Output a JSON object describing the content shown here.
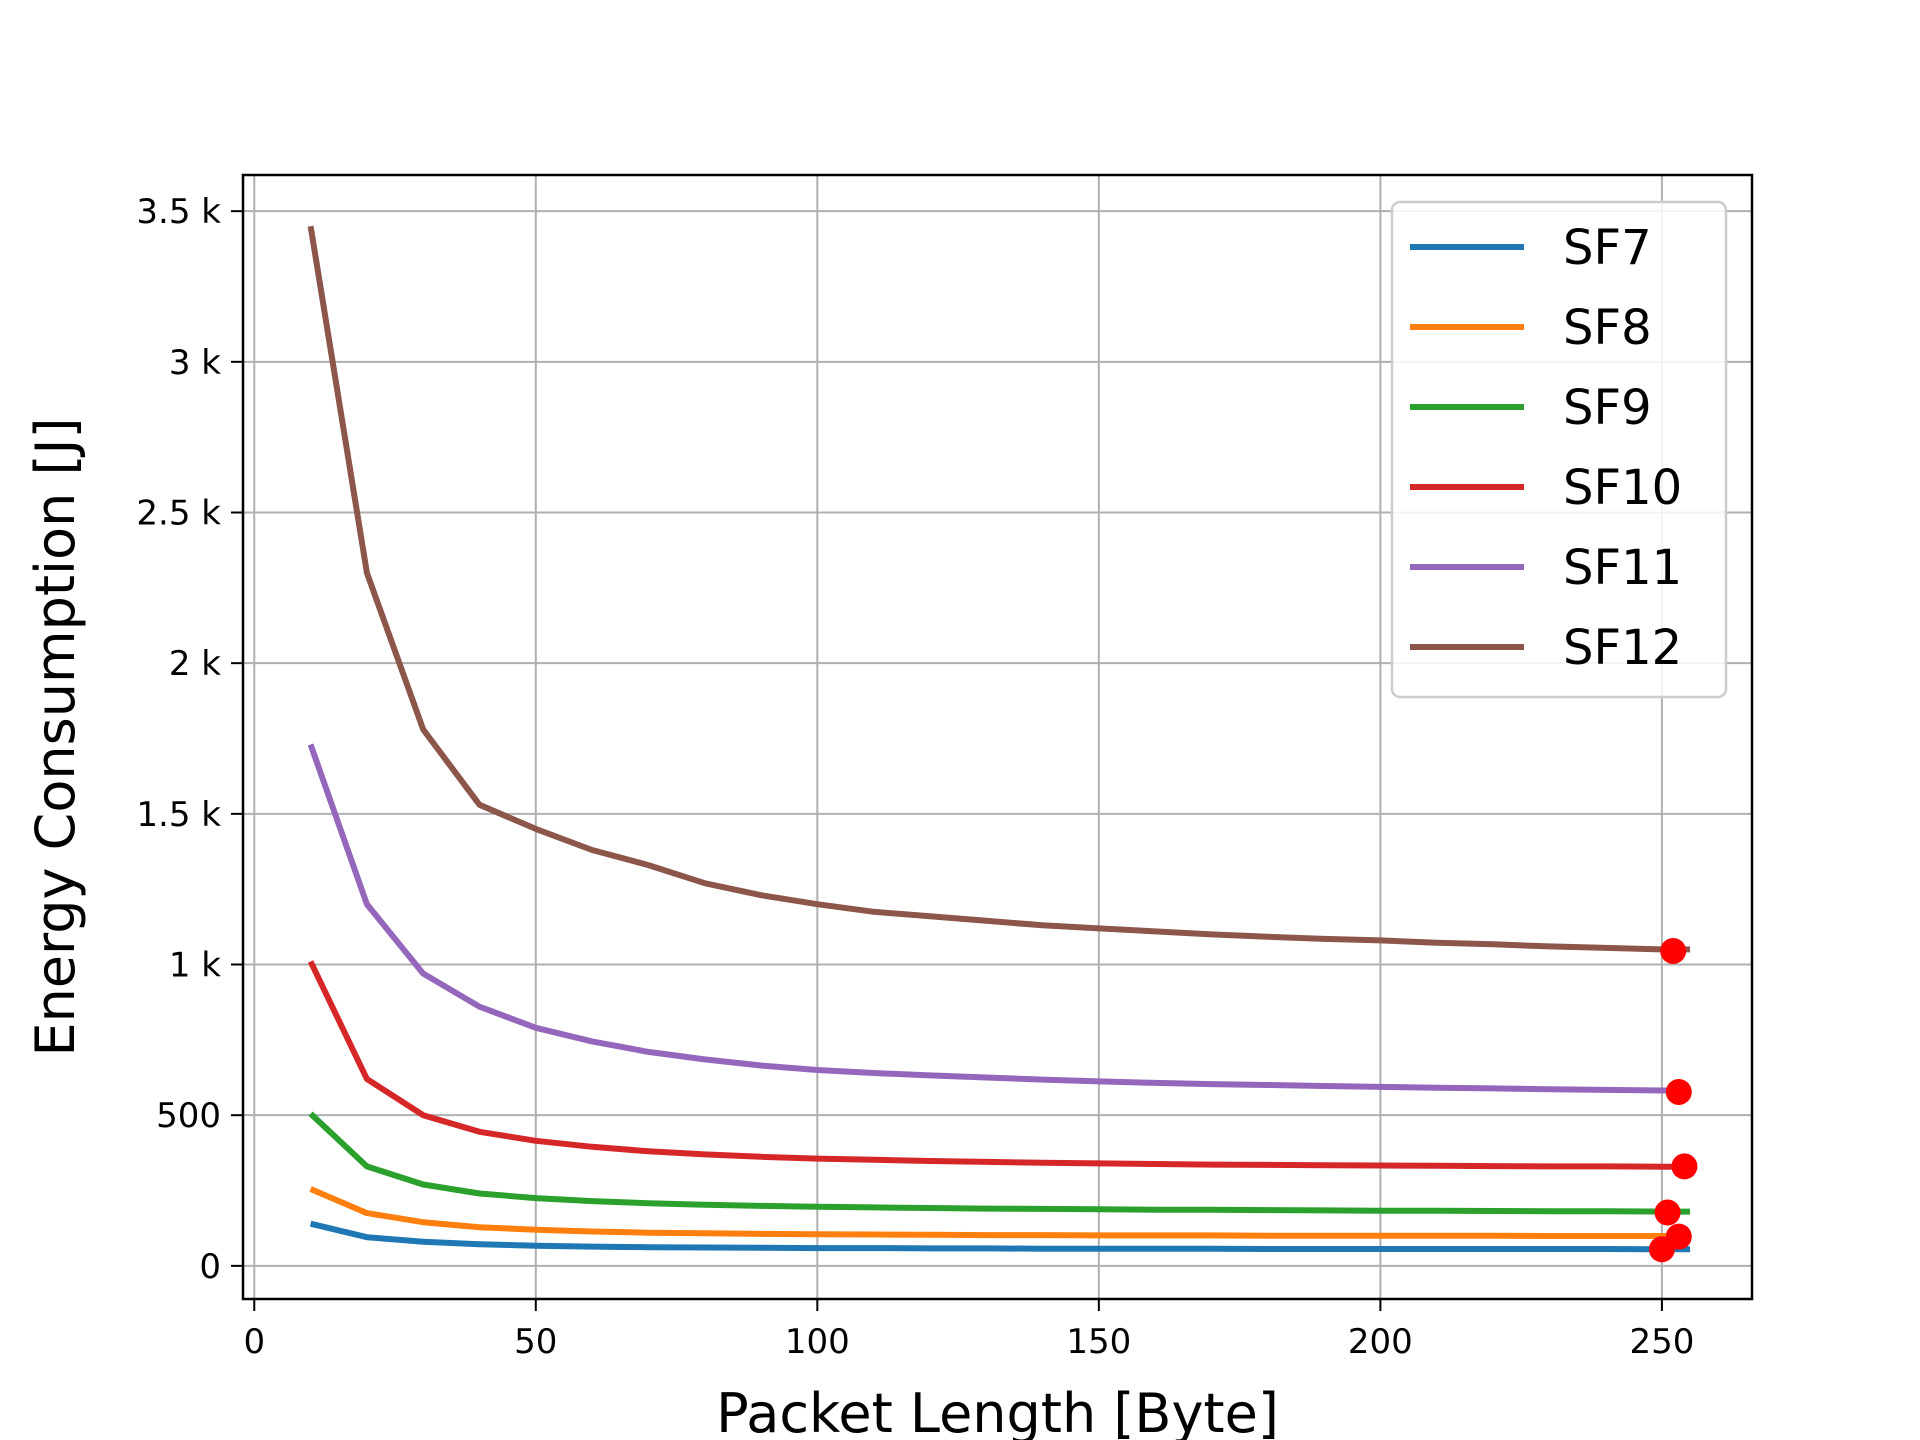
{
  "chart_data": {
    "type": "line",
    "xlabel": "Packet Length [Byte]",
    "ylabel": "Energy Consumption [J]",
    "xlim": [
      -2,
      266
    ],
    "ylim": [
      -110,
      3620
    ],
    "xticks": [
      0,
      50,
      100,
      150,
      200,
      250
    ],
    "xtick_labels": [
      "0",
      "50",
      "100",
      "150",
      "200",
      "250"
    ],
    "yticks": [
      0,
      500,
      1000,
      1500,
      2000,
      2500,
      3000,
      3500
    ],
    "ytick_labels": [
      "0",
      "500",
      "1 k",
      "1.5 k",
      "2 k",
      "2.5 k",
      "3 k",
      "3.5 k"
    ],
    "grid": true,
    "legend_position": "top-right",
    "x": [
      10,
      20,
      30,
      40,
      50,
      60,
      70,
      80,
      90,
      100,
      110,
      120,
      130,
      140,
      150,
      160,
      170,
      180,
      190,
      200,
      210,
      220,
      230,
      240,
      250,
      255
    ],
    "series": [
      {
        "name": "SF7",
        "color": "#1f77b4",
        "values": [
          140,
          95,
          80,
          72,
          67,
          64,
          62,
          61,
          60,
          59,
          59,
          58,
          58,
          57,
          57,
          57,
          57,
          56,
          56,
          56,
          56,
          56,
          56,
          56,
          55,
          55
        ]
      },
      {
        "name": "SF8",
        "color": "#ff7f0e",
        "values": [
          255,
          175,
          145,
          128,
          120,
          114,
          110,
          108,
          106,
          105,
          104,
          103,
          102,
          102,
          101,
          101,
          101,
          100,
          100,
          100,
          100,
          100,
          99,
          99,
          99,
          99
        ]
      },
      {
        "name": "SF9",
        "color": "#2ca02c",
        "values": [
          505,
          330,
          270,
          240,
          225,
          215,
          208,
          203,
          199,
          196,
          194,
          192,
          190,
          189,
          188,
          186,
          186,
          185,
          184,
          183,
          183,
          182,
          181,
          181,
          180,
          180
        ]
      },
      {
        "name": "SF10",
        "color": "#d62728",
        "values": [
          1010,
          620,
          500,
          445,
          415,
          395,
          380,
          370,
          362,
          356,
          352,
          348,
          345,
          342,
          340,
          338,
          336,
          335,
          334,
          333,
          332,
          331,
          330,
          330,
          329,
          329
        ]
      },
      {
        "name": "SF11",
        "color": "#9467bd",
        "values": [
          1730,
          1200,
          970,
          860,
          790,
          745,
          710,
          685,
          665,
          650,
          640,
          632,
          625,
          618,
          612,
          607,
          603,
          600,
          597,
          594,
          591,
          589,
          586,
          584,
          582,
          582
        ]
      },
      {
        "name": "SF12",
        "color": "#8c564b",
        "values": [
          3450,
          2300,
          1780,
          1530,
          1450,
          1380,
          1330,
          1270,
          1230,
          1200,
          1175,
          1160,
          1145,
          1130,
          1120,
          1110,
          1100,
          1092,
          1085,
          1080,
          1072,
          1067,
          1060,
          1055,
          1050,
          1050
        ]
      }
    ],
    "markers": {
      "color": "#ff0000",
      "points": [
        {
          "x": 250,
          "y": 55
        },
        {
          "x": 253,
          "y": 97
        },
        {
          "x": 251,
          "y": 177
        },
        {
          "x": 254,
          "y": 330
        },
        {
          "x": 253,
          "y": 577
        },
        {
          "x": 252,
          "y": 1045
        }
      ]
    }
  }
}
